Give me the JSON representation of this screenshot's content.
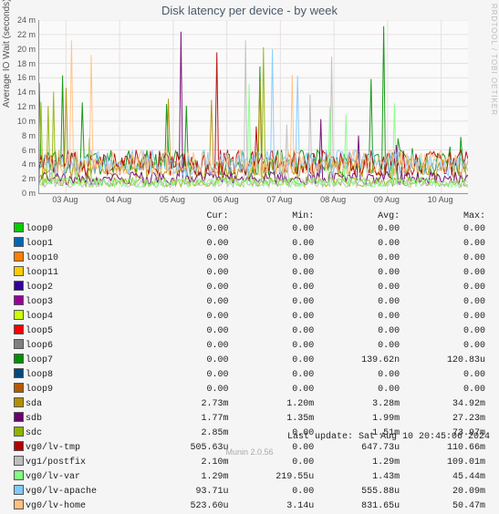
{
  "title": "Disk latency per device - by week",
  "ylabel": "Average IO Wait (seconds)",
  "side_text": "RRDTOOL / TOBI OETIKER",
  "footer": "Munin 2.0.56",
  "last_update": "Last update: Sat Aug 10 20:45:06 2024",
  "chart": {
    "type": "line",
    "background_color": "#fafafa",
    "grid_color": "#e8e0e0",
    "ylim": [
      0,
      24
    ],
    "ytick_step": 2,
    "ytick_suffix": " m",
    "xticks": [
      "03 Aug",
      "04 Aug",
      "05 Aug",
      "06 Aug",
      "07 Aug",
      "08 Aug",
      "09 Aug",
      "10 Aug"
    ],
    "label_fontsize": 9
  },
  "columns": [
    "Cur:",
    "Min:",
    "Avg:",
    "Max:"
  ],
  "series": [
    {
      "name": "loop0",
      "color": "#00cc00",
      "cur": "0.00",
      "min": "0.00",
      "avg": "0.00",
      "max": "0.00"
    },
    {
      "name": "loop1",
      "color": "#0066b3",
      "cur": "0.00",
      "min": "0.00",
      "avg": "0.00",
      "max": "0.00"
    },
    {
      "name": "loop10",
      "color": "#ff8000",
      "cur": "0.00",
      "min": "0.00",
      "avg": "0.00",
      "max": "0.00"
    },
    {
      "name": "loop11",
      "color": "#ffcc00",
      "cur": "0.00",
      "min": "0.00",
      "avg": "0.00",
      "max": "0.00"
    },
    {
      "name": "loop2",
      "color": "#330099",
      "cur": "0.00",
      "min": "0.00",
      "avg": "0.00",
      "max": "0.00"
    },
    {
      "name": "loop3",
      "color": "#990099",
      "cur": "0.00",
      "min": "0.00",
      "avg": "0.00",
      "max": "0.00"
    },
    {
      "name": "loop4",
      "color": "#ccff00",
      "cur": "0.00",
      "min": "0.00",
      "avg": "0.00",
      "max": "0.00"
    },
    {
      "name": "loop5",
      "color": "#ff0000",
      "cur": "0.00",
      "min": "0.00",
      "avg": "0.00",
      "max": "0.00"
    },
    {
      "name": "loop6",
      "color": "#808080",
      "cur": "0.00",
      "min": "0.00",
      "avg": "0.00",
      "max": "0.00"
    },
    {
      "name": "loop7",
      "color": "#008f00",
      "cur": "0.00",
      "min": "0.00",
      "avg": "139.62n",
      "max": "120.83u"
    },
    {
      "name": "loop8",
      "color": "#00487d",
      "cur": "0.00",
      "min": "0.00",
      "avg": "0.00",
      "max": "0.00"
    },
    {
      "name": "loop9",
      "color": "#b35a00",
      "cur": "0.00",
      "min": "0.00",
      "avg": "0.00",
      "max": "0.00"
    },
    {
      "name": "sda",
      "color": "#b38f00",
      "cur": "2.73m",
      "min": "1.20m",
      "avg": "3.28m",
      "max": "34.92m"
    },
    {
      "name": "sdb",
      "color": "#6b006b",
      "cur": "1.77m",
      "min": "1.35m",
      "avg": "1.99m",
      "max": "27.23m"
    },
    {
      "name": "sdc",
      "color": "#8fb300",
      "cur": "2.85m",
      "min": "0.00",
      "avg": "1.51m",
      "max": "73.97m"
    },
    {
      "name": "vg0/lv-tmp",
      "color": "#b30000",
      "cur": "505.63u",
      "min": "0.00",
      "avg": "647.73u",
      "max": "110.66m"
    },
    {
      "name": "vg1/postfix",
      "color": "#bebebe",
      "cur": "2.10m",
      "min": "0.00",
      "avg": "1.29m",
      "max": "109.01m"
    },
    {
      "name": "vg0/lv-var",
      "color": "#80ff80",
      "cur": "1.29m",
      "min": "219.55u",
      "avg": "1.43m",
      "max": "45.44m"
    },
    {
      "name": "vg0/lv-apache",
      "color": "#80c9ff",
      "cur": "93.71u",
      "min": "0.00",
      "avg": "555.88u",
      "max": "20.09m"
    },
    {
      "name": "vg0/lv-home",
      "color": "#ffc080",
      "cur": "523.60u",
      "min": "3.14u",
      "avg": "831.65u",
      "max": "50.47m"
    }
  ]
}
